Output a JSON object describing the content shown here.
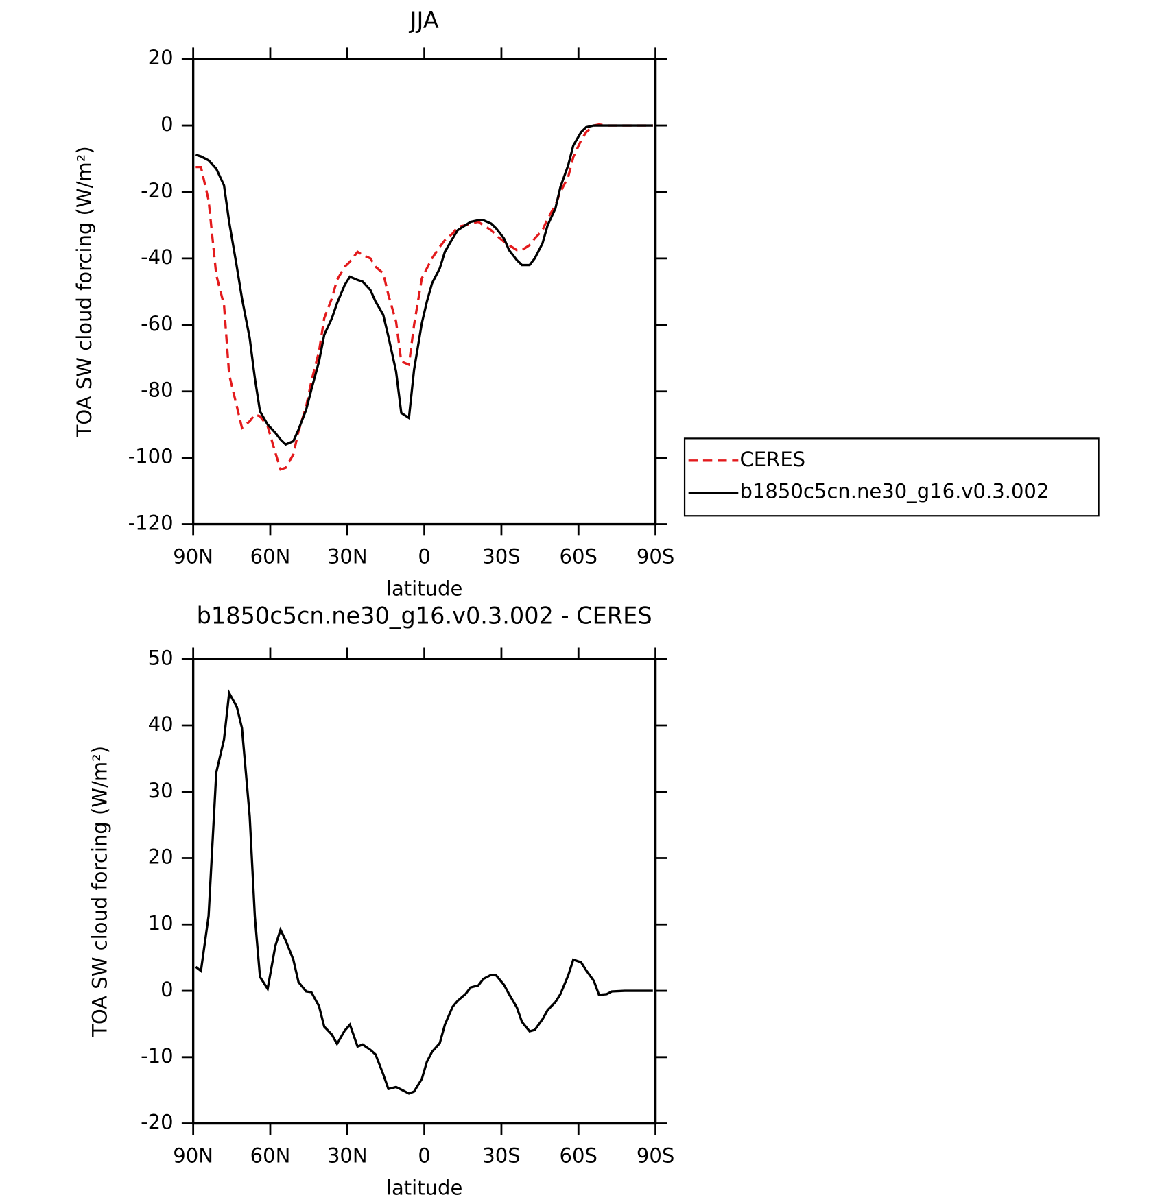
{
  "chart_data": [
    {
      "type": "line",
      "title": "JJA",
      "x_label": "latitude",
      "y_label": "TOA SW cloud forcing (W/m²)",
      "x": [
        89,
        87,
        84,
        81,
        78,
        76,
        73,
        71,
        68,
        66,
        64,
        61,
        58,
        56,
        54,
        51,
        49,
        46,
        44,
        41,
        39,
        36,
        34,
        31,
        29,
        26,
        24,
        21,
        19,
        16,
        14,
        11,
        9,
        6,
        4,
        1,
        -1,
        -3,
        -6,
        -8,
        -11,
        -13,
        -16,
        -18,
        -21,
        -23,
        -26,
        -28,
        -31,
        -33,
        -36,
        -38,
        -41,
        -43,
        -46,
        -48,
        -51,
        -53,
        -56,
        -58,
        -61,
        -63,
        -66,
        -68,
        -71,
        -73,
        -78,
        -84,
        -89
      ],
      "xlim": [
        90,
        -90
      ],
      "xticks": [
        {
          "value": 90,
          "label": "90N"
        },
        {
          "value": 60,
          "label": "60N"
        },
        {
          "value": 30,
          "label": "30N"
        },
        0,
        {
          "value": -30,
          "label": "30S"
        },
        {
          "value": -60,
          "label": "60S"
        },
        {
          "value": -90,
          "label": "90S"
        }
      ],
      "ylim": [
        -120,
        20
      ],
      "yticks": [
        -120,
        -100,
        -80,
        -60,
        -40,
        -20,
        0,
        20
      ],
      "legend": "right",
      "series": [
        {
          "name": "CERES",
          "color": "#e31a1c",
          "dash": true,
          "values": [
            -12.5,
            -12.5,
            -22.5,
            -45,
            -54,
            -75,
            -84.5,
            -91,
            -89,
            -87,
            -87.5,
            -90.5,
            -98.5,
            -103.5,
            -103,
            -99,
            -92,
            -84.5,
            -77,
            -68,
            -58,
            -52,
            -46.5,
            -42.5,
            -41,
            -38,
            -39,
            -40,
            -42.5,
            -44.5,
            -51,
            -59,
            -71,
            -72,
            -60,
            -46,
            -43,
            -40,
            -36.5,
            -34.5,
            -32.5,
            -30.5,
            -30,
            -29.5,
            -29,
            -30,
            -31.5,
            -33,
            -35,
            -36,
            -37.5,
            -37.5,
            -36,
            -34,
            -31.5,
            -28,
            -24,
            -20,
            -15.5,
            -9.5,
            -4.5,
            -2,
            0,
            0.3,
            0,
            0,
            0,
            0,
            0
          ]
        },
        {
          "name": "b1850c5cn.ne30_g16.v0.3.002",
          "color": "#000000",
          "dash": false,
          "values": [
            -8.8,
            -9.3,
            -10.5,
            -13,
            -18,
            -29,
            -42.5,
            -52,
            -64,
            -76,
            -86,
            -90,
            -92.5,
            -94.5,
            -96,
            -95,
            -91.5,
            -85.5,
            -79.5,
            -71,
            -63,
            -58,
            -53.5,
            -48,
            -45.5,
            -46.5,
            -47,
            -49.5,
            -53,
            -57,
            -63.5,
            -74,
            -86.5,
            -88,
            -73.5,
            -59.5,
            -53,
            -47.5,
            -43,
            -38,
            -34,
            -31.5,
            -30,
            -29,
            -28.5,
            -28.5,
            -29.5,
            -31,
            -34,
            -37.5,
            -40.5,
            -42,
            -42,
            -40,
            -35.5,
            -30,
            -25,
            -18.5,
            -12,
            -6,
            -2,
            -0.5,
            0,
            0,
            0,
            0,
            0,
            0,
            0
          ]
        }
      ]
    },
    {
      "type": "line",
      "title": "b1850c5cn.ne30_g16.v0.3.002 - CERES",
      "x_label": "latitude",
      "y_label": "TOA SW cloud forcing (W/m²)",
      "x": [
        89,
        87,
        84,
        81,
        78,
        76,
        73,
        71,
        68,
        66,
        64,
        61,
        58,
        56,
        54,
        51,
        49,
        46,
        44,
        41,
        39,
        36,
        34,
        31,
        29,
        26,
        24,
        21,
        19,
        16,
        14,
        11,
        9,
        6,
        4,
        1,
        -1,
        -3,
        -6,
        -8,
        -11,
        -13,
        -16,
        -18,
        -21,
        -23,
        -26,
        -28,
        -31,
        -33,
        -36,
        -38,
        -41,
        -43,
        -46,
        -48,
        -51,
        -53,
        -56,
        -58,
        -61,
        -63,
        -66,
        -68,
        -71,
        -73,
        -78,
        -84,
        -89
      ],
      "xlim": [
        90,
        -90
      ],
      "xticks": [
        {
          "value": 90,
          "label": "90N"
        },
        {
          "value": 60,
          "label": "60N"
        },
        {
          "value": 30,
          "label": "30N"
        },
        0,
        {
          "value": -30,
          "label": "30S"
        },
        {
          "value": -60,
          "label": "60S"
        },
        {
          "value": -90,
          "label": "90S"
        }
      ],
      "ylim": [
        -20,
        50
      ],
      "yticks": [
        -20,
        -10,
        0,
        10,
        20,
        30,
        40,
        50
      ],
      "series": [
        {
          "color": "#000000",
          "dash": false,
          "values": [
            3.6,
            3.0,
            11.3,
            32.9,
            37.9,
            44.9,
            42.8,
            39.6,
            26.3,
            11.2,
            2.1,
            0.3,
            6.8,
            9.2,
            7.6,
            4.7,
            1.3,
            -0.1,
            -0.2,
            -2.3,
            -5.4,
            -6.6,
            -8.0,
            -6.0,
            -5.1,
            -8.4,
            -8.1,
            -8.9,
            -9.6,
            -12.6,
            -14.8,
            -14.5,
            -14.9,
            -15.5,
            -15.2,
            -13.3,
            -10.7,
            -9.2,
            -7.9,
            -5.1,
            -2.4,
            -1.5,
            -0.5,
            0.5,
            0.8,
            1.8,
            2.4,
            2.3,
            0.9,
            -0.5,
            -2.5,
            -4.7,
            -6.1,
            -5.9,
            -4.3,
            -2.9,
            -1.7,
            -0.5,
            2.3,
            4.7,
            4.3,
            3.1,
            1.5,
            -0.6,
            -0.5,
            -0.1,
            0,
            0,
            0
          ]
        }
      ]
    }
  ]
}
